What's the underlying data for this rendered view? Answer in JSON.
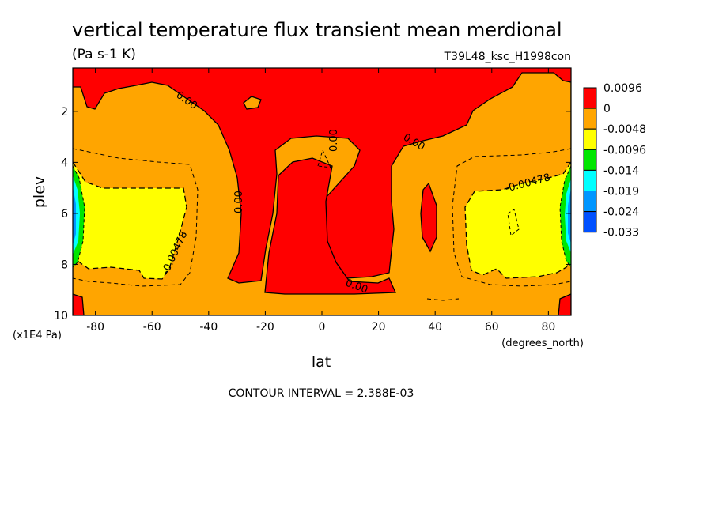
{
  "chart_data": {
    "type": "heatmap",
    "title": "vertical temperature flux transient mean merdional",
    "units": "(Pa s-1 K)",
    "dataset": "T39L48_ksc_H1998con",
    "xlabel": "lat",
    "x_units": "(degrees_north)",
    "ylabel": "plev",
    "y_units": "(x1E4 Pa)",
    "xlim": [
      -88,
      88
    ],
    "ylim": [
      10,
      0.3
    ],
    "x_ticks": [
      "-80",
      "-60",
      "-40",
      "-20",
      "0",
      "20",
      "40",
      "60",
      "80"
    ],
    "y_ticks": [
      "2",
      "4",
      "6",
      "8",
      "10"
    ],
    "contour_interval_text": "CONTOUR INTERVAL = 2.388E-03",
    "contour_labels": [
      "0.00",
      "0.00",
      "0.00",
      "0.00",
      "0.00",
      "-0.00478",
      "-0.00478"
    ],
    "colorbar": {
      "labels": [
        "0.0096",
        "0",
        "-0.0048",
        "-0.0096",
        "-0.014",
        "-0.019",
        "-0.024",
        "-0.033"
      ],
      "colors": [
        "#ff0000",
        "#ffa500",
        "#ffff00",
        "#00e600",
        "#00ffff",
        "#0096ff",
        "#0050ff"
      ]
    }
  }
}
